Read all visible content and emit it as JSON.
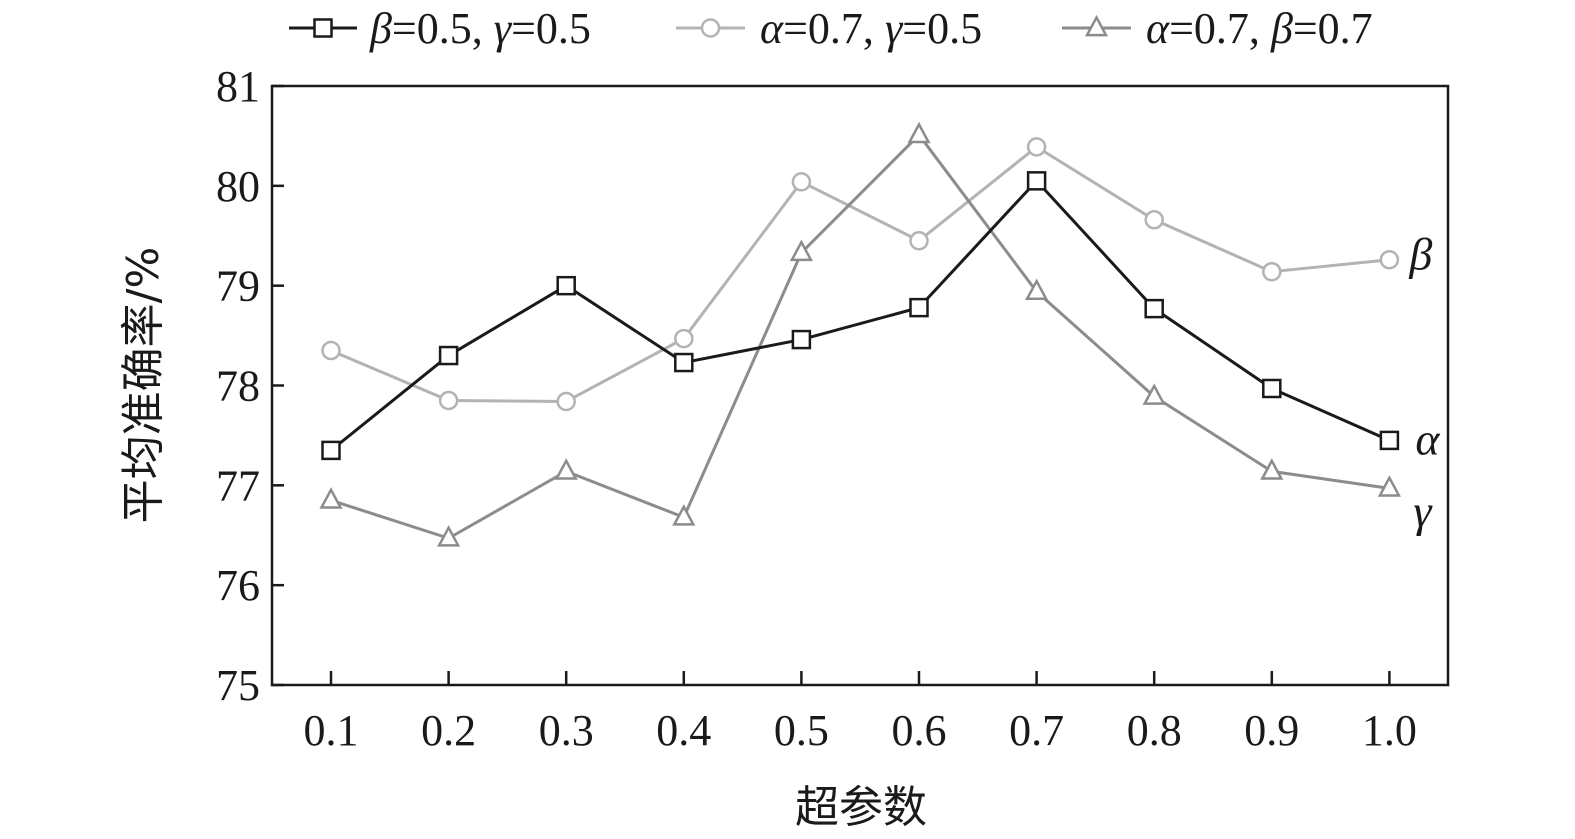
{
  "chart_data": {
    "type": "line",
    "title": "",
    "xlabel": "超参数",
    "ylabel": "平均准确率/%",
    "x": [
      "0.1",
      "0.2",
      "0.3",
      "0.4",
      "0.5",
      "0.6",
      "0.7",
      "0.8",
      "0.9",
      "1.0"
    ],
    "ylim": [
      75,
      81
    ],
    "yticks": [
      "75",
      "76",
      "77",
      "78",
      "79",
      "80",
      "81"
    ],
    "grid": false,
    "legend_position": "top",
    "series": [
      {
        "legend": {
          "g1": "β",
          "t1": "=0.5, ",
          "g2": "γ",
          "t2": "=0.5"
        },
        "end_label": "α",
        "marker": "square",
        "color": "#1a1a1a",
        "values": [
          77.35,
          78.3,
          79.0,
          78.23,
          78.46,
          78.78,
          80.05,
          78.77,
          77.97,
          77.45
        ]
      },
      {
        "legend": {
          "g1": "α",
          "t1": "=0.7, ",
          "g2": "γ",
          "t2": "=0.5"
        },
        "end_label": "β",
        "marker": "circle",
        "color": "#b3b3b3",
        "values": [
          78.35,
          77.85,
          77.84,
          78.47,
          80.04,
          79.45,
          80.39,
          79.66,
          79.14,
          79.26
        ]
      },
      {
        "legend": {
          "g1": "α",
          "t1": "=0.7, ",
          "g2": "β",
          "t2": "=0.7"
        },
        "end_label": "γ",
        "marker": "triangle",
        "color": "#8c8c8c",
        "values": [
          76.85,
          76.47,
          77.14,
          76.68,
          79.33,
          80.51,
          78.94,
          77.89,
          77.14,
          76.97
        ]
      }
    ]
  }
}
